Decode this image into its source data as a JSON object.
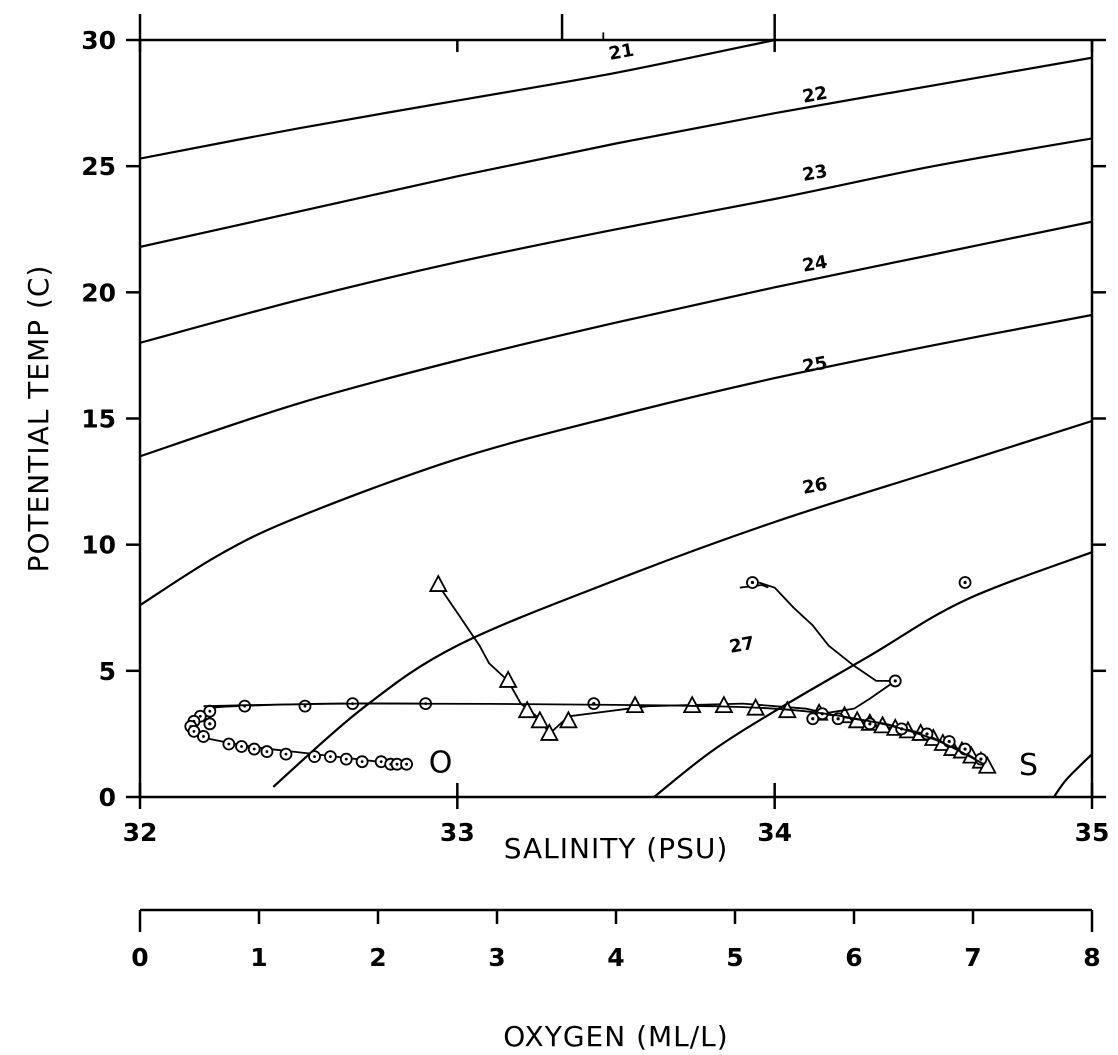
{
  "chart_data": {
    "type": "scatter",
    "xlabel": "SALINITY (PSU)",
    "ylabel": "POTENTIAL TEMP (C)",
    "xlim": [
      32,
      35
    ],
    "ylim": [
      0,
      30
    ],
    "x_ticks": [
      "32",
      "33",
      "34",
      "35"
    ],
    "y_ticks": [
      "0",
      "5",
      "10",
      "15",
      "20",
      "25",
      "30"
    ],
    "secondary_xlabel": "OXYGEN (ML/L)",
    "secondary_xlim": [
      0,
      8
    ],
    "secondary_ticks": [
      "0",
      "1",
      "2",
      "3",
      "4",
      "5",
      "6",
      "7",
      "8"
    ],
    "isopycnals": [
      {
        "label": "21",
        "points": [
          [
            32,
            25.3
          ],
          [
            32.5,
            26.5
          ],
          [
            33,
            27.6
          ],
          [
            33.5,
            28.7
          ],
          [
            34,
            30
          ]
        ]
      },
      {
        "label": "22",
        "points": [
          [
            32,
            21.8
          ],
          [
            32.5,
            23.2
          ],
          [
            33,
            24.6
          ],
          [
            33.5,
            25.9
          ],
          [
            34,
            27.1
          ],
          [
            34.5,
            28.2
          ],
          [
            35,
            29.3
          ]
        ]
      },
      {
        "label": "23",
        "points": [
          [
            32,
            18
          ],
          [
            32.5,
            19.7
          ],
          [
            33,
            21.2
          ],
          [
            33.5,
            22.5
          ],
          [
            34,
            23.7
          ],
          [
            34.5,
            25
          ],
          [
            35,
            26.1
          ]
        ]
      },
      {
        "label": "24",
        "points": [
          [
            32,
            13.5
          ],
          [
            32.5,
            15.6
          ],
          [
            33,
            17.3
          ],
          [
            33.5,
            18.8
          ],
          [
            34,
            20.2
          ],
          [
            34.5,
            21.5
          ],
          [
            35,
            22.8
          ]
        ]
      },
      {
        "label": "25",
        "points": [
          [
            32,
            7.6
          ],
          [
            32.25,
            9.6
          ],
          [
            32.5,
            11.1
          ],
          [
            33,
            13.4
          ],
          [
            33.5,
            15.1
          ],
          [
            34,
            16.6
          ],
          [
            34.5,
            17.9
          ],
          [
            35,
            19.1
          ]
        ]
      },
      {
        "label": "26",
        "points": [
          [
            32.42,
            0.4
          ],
          [
            32.7,
            3.5
          ],
          [
            33,
            6
          ],
          [
            33.5,
            8.6
          ],
          [
            34,
            10.9
          ],
          [
            34.5,
            12.9
          ],
          [
            35,
            14.9
          ]
        ]
      },
      {
        "label": "27",
        "points": [
          [
            33.62,
            0
          ],
          [
            33.8,
            1.8
          ],
          [
            34,
            3.4
          ],
          [
            34.3,
            5.6
          ],
          [
            34.6,
            7.8
          ],
          [
            35,
            9.7
          ]
        ]
      },
      {
        "label": "",
        "points": [
          [
            34.88,
            0
          ],
          [
            34.92,
            0.7
          ],
          [
            35,
            1.7
          ]
        ]
      }
    ],
    "isopycnal_labels": [
      {
        "text": "21",
        "x": 33.52,
        "y": 29.3
      },
      {
        "text": "22",
        "x": 34.13,
        "y": 27.6
      },
      {
        "text": "23",
        "x": 34.13,
        "y": 24.5
      },
      {
        "text": "24",
        "x": 34.13,
        "y": 20.9
      },
      {
        "text": "25",
        "x": 34.13,
        "y": 16.9
      },
      {
        "text": "26",
        "x": 34.13,
        "y": 12.1
      },
      {
        "text": "27",
        "x": 33.9,
        "y": 5.8
      }
    ],
    "series": [
      {
        "marker": "triangle",
        "line": [
          [
            32.94,
            8.4
          ],
          [
            33.0,
            7.3
          ],
          [
            33.07,
            6.0
          ],
          [
            33.1,
            5.3
          ],
          [
            33.16,
            4.6
          ],
          [
            33.2,
            3.7
          ],
          [
            33.26,
            3.1
          ],
          [
            33.29,
            2.5
          ],
          [
            33.35,
            3.2
          ],
          [
            33.6,
            3.6
          ],
          [
            33.9,
            3.7
          ],
          [
            34.1,
            3.5
          ],
          [
            34.2,
            3.2
          ],
          [
            34.3,
            2.9
          ],
          [
            34.45,
            2.5
          ],
          [
            34.58,
            1.9
          ],
          [
            34.66,
            1.3
          ]
        ],
        "points": [
          [
            32.94,
            8.4
          ],
          [
            33.16,
            4.6
          ],
          [
            33.22,
            3.4
          ],
          [
            33.26,
            3.0
          ],
          [
            33.29,
            2.5
          ],
          [
            33.35,
            3.0
          ],
          [
            33.56,
            3.6
          ],
          [
            33.74,
            3.6
          ],
          [
            33.84,
            3.6
          ],
          [
            33.94,
            3.5
          ],
          [
            34.04,
            3.4
          ],
          [
            34.14,
            3.3
          ],
          [
            34.22,
            3.2
          ],
          [
            34.26,
            3.0
          ],
          [
            34.3,
            2.9
          ],
          [
            34.34,
            2.8
          ],
          [
            34.38,
            2.7
          ],
          [
            34.42,
            2.6
          ],
          [
            34.46,
            2.5
          ],
          [
            34.5,
            2.3
          ],
          [
            34.53,
            2.1
          ],
          [
            34.56,
            1.9
          ],
          [
            34.59,
            1.8
          ],
          [
            34.62,
            1.6
          ],
          [
            34.65,
            1.4
          ],
          [
            34.67,
            1.2
          ]
        ]
      },
      {
        "marker": "dot",
        "line": [
          [
            33.95,
            8.5
          ],
          [
            34.0,
            8.3
          ],
          [
            34.06,
            7.5
          ],
          [
            34.12,
            6.8
          ],
          [
            34.17,
            6.0
          ],
          [
            34.25,
            5.2
          ],
          [
            34.32,
            4.6
          ],
          [
            34.38,
            4.6
          ],
          [
            34.3,
            3.9
          ],
          [
            34.25,
            3.5
          ],
          [
            34.15,
            3.3
          ],
          [
            34.25,
            3.1
          ],
          [
            34.35,
            2.9
          ],
          [
            34.47,
            2.5
          ],
          [
            34.58,
            1.9
          ],
          [
            34.66,
            1.3
          ]
        ],
        "points": [
          [
            34.38,
            4.6
          ],
          [
            34.15,
            3.3
          ],
          [
            34.2,
            3.1
          ],
          [
            34.3,
            2.9
          ],
          [
            34.4,
            2.7
          ],
          [
            34.48,
            2.5
          ],
          [
            34.55,
            2.2
          ],
          [
            34.6,
            1.9
          ],
          [
            34.65,
            1.5
          ]
        ]
      },
      {
        "marker": "dot-circle",
        "label": "O",
        "line": [
          [
            32.9,
            3.7
          ],
          [
            32.6,
            3.7
          ],
          [
            32.3,
            3.6
          ],
          [
            32.22,
            3.5
          ],
          [
            32.18,
            3.2
          ],
          [
            32.15,
            2.8
          ],
          [
            32.17,
            2.5
          ],
          [
            32.22,
            2.3
          ],
          [
            32.35,
            2.0
          ],
          [
            32.55,
            1.7
          ],
          [
            32.75,
            1.4
          ],
          [
            32.84,
            1.3
          ]
        ],
        "points": [
          [
            32.9,
            3.7
          ],
          [
            32.67,
            3.7
          ],
          [
            32.52,
            3.6
          ],
          [
            32.33,
            3.6
          ],
          [
            32.22,
            3.4
          ],
          [
            32.19,
            3.2
          ],
          [
            32.17,
            3.0
          ],
          [
            32.16,
            2.8
          ],
          [
            32.17,
            2.6
          ],
          [
            32.2,
            2.4
          ],
          [
            32.28,
            2.1
          ],
          [
            32.32,
            2.0
          ],
          [
            32.36,
            1.9
          ],
          [
            32.4,
            1.8
          ],
          [
            32.46,
            1.7
          ],
          [
            32.55,
            1.6
          ],
          [
            32.6,
            1.6
          ],
          [
            32.65,
            1.5
          ],
          [
            32.7,
            1.4
          ],
          [
            32.76,
            1.4
          ],
          [
            32.79,
            1.3
          ],
          [
            32.81,
            1.3
          ],
          [
            32.84,
            1.3
          ]
        ]
      },
      {
        "marker": "circle",
        "points": [
          [
            33.93,
            8.5
          ],
          [
            34.6,
            8.5
          ],
          [
            32.22,
            2.9
          ],
          [
            33.43,
            3.7
          ],
          [
            34.12,
            3.1
          ]
        ]
      },
      {
        "marker": "none",
        "label": "S",
        "line": [
          [
            32.2,
            3.6
          ],
          [
            32.7,
            3.7
          ],
          [
            33.5,
            3.65
          ],
          [
            34.0,
            3.5
          ],
          [
            34.3,
            3.0
          ],
          [
            34.5,
            2.3
          ],
          [
            34.66,
            1.3
          ]
        ]
      }
    ],
    "series_labels": [
      {
        "text": "O",
        "x": 32.91,
        "y": 1.4
      },
      {
        "text": "S",
        "x": 34.77,
        "y": 1.3
      }
    ],
    "extra_lines": [
      [
        [
          33.46,
          30.3
        ],
        [
          33.46,
          30
        ]
      ],
      [
        [
          33.89,
          8.3
        ],
        [
          33.96,
          8.4
        ],
        [
          33.98,
          8.3
        ]
      ]
    ]
  }
}
